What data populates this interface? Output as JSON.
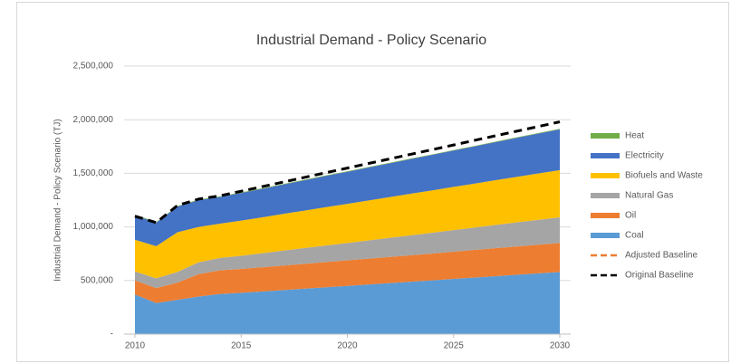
{
  "chart_data": {
    "type": "area",
    "stacked": true,
    "title": "Industrial Demand - Policy Scenario",
    "y_label": "Industrial Demand - Policy Scenario (TJ)",
    "x": [
      2010,
      2011,
      2012,
      2013,
      2014,
      2015,
      2016,
      2017,
      2018,
      2019,
      2020,
      2021,
      2022,
      2023,
      2024,
      2025,
      2026,
      2027,
      2028,
      2029,
      2030
    ],
    "xlim": [
      2010,
      2030
    ],
    "xticks": [
      2010,
      2015,
      2020,
      2025,
      2030
    ],
    "ylim": [
      0,
      2500000
    ],
    "yticks": [
      {
        "value": 0,
        "label": "-"
      },
      {
        "value": 500000,
        "label": "500,000"
      },
      {
        "value": 1000000,
        "label": "1,000,000"
      },
      {
        "value": 1500000,
        "label": "1,500,000"
      },
      {
        "value": 2000000,
        "label": "2,000,000"
      },
      {
        "value": 2500000,
        "label": "2,500,000"
      }
    ],
    "grid": true,
    "legend": "right",
    "series": [
      {
        "name": "Heat",
        "type": "area",
        "color": "#70ad47",
        "values": [
          5000,
          5000,
          5000,
          5000,
          5000,
          5000,
          5000,
          5000,
          5000,
          5000,
          5000,
          5000,
          5000,
          5000,
          5000,
          5000,
          5000,
          5000,
          5000,
          5000,
          5000
        ]
      },
      {
        "name": "Electricity",
        "type": "area",
        "color": "#4472c4",
        "values": [
          230000,
          220000,
          240000,
          250000,
          250000,
          258000,
          266000,
          274000,
          283000,
          291000,
          299000,
          307000,
          315000,
          323000,
          331000,
          339000,
          347000,
          355000,
          364000,
          372000,
          380000
        ]
      },
      {
        "name": "Biofuels and Waste",
        "type": "area",
        "color": "#ffc000",
        "values": [
          295000,
          300000,
          370000,
          330000,
          320000,
          328000,
          335000,
          343000,
          350000,
          358000,
          365000,
          373000,
          380000,
          388000,
          395000,
          403000,
          410000,
          418000,
          425000,
          433000,
          440000
        ]
      },
      {
        "name": "Natural Gas",
        "type": "area",
        "color": "#a5a5a5",
        "values": [
          85000,
          90000,
          100000,
          110000,
          115000,
          123000,
          131000,
          139000,
          147000,
          155000,
          162000,
          170000,
          178000,
          186000,
          194000,
          201000,
          209000,
          217000,
          225000,
          232000,
          240000
        ]
      },
      {
        "name": "Oil",
        "type": "area",
        "color": "#ed7d31",
        "values": [
          130000,
          140000,
          160000,
          210000,
          220000,
          223000,
          226000,
          229000,
          232000,
          235000,
          238000,
          241000,
          244000,
          247000,
          250000,
          254000,
          257000,
          261000,
          264000,
          267000,
          270000
        ]
      },
      {
        "name": "Coal",
        "type": "area",
        "color": "#5b9bd5",
        "values": [
          370000,
          290000,
          320000,
          350000,
          375000,
          385000,
          398000,
          411000,
          424000,
          437000,
          450000,
          463000,
          476000,
          489000,
          502000,
          515000,
          528000,
          541000,
          554000,
          567000,
          580000
        ]
      },
      {
        "name": "Adjusted Baseline",
        "type": "line",
        "dashed": true,
        "color": "#ed7d31",
        "values": [
          1100000,
          1040000,
          1200000,
          1260000,
          1290000,
          1333000,
          1376000,
          1419000,
          1463000,
          1506000,
          1549000,
          1592000,
          1635000,
          1678000,
          1721000,
          1764000,
          1808000,
          1851000,
          1894000,
          1937000,
          1980000
        ]
      },
      {
        "name": "Original Baseline",
        "type": "line",
        "dashed": true,
        "color": "#000000",
        "values": [
          1100000,
          1040000,
          1200000,
          1260000,
          1290000,
          1333000,
          1376000,
          1419000,
          1463000,
          1506000,
          1549000,
          1592000,
          1635000,
          1678000,
          1721000,
          1764000,
          1808000,
          1851000,
          1894000,
          1937000,
          1980000
        ]
      }
    ]
  }
}
